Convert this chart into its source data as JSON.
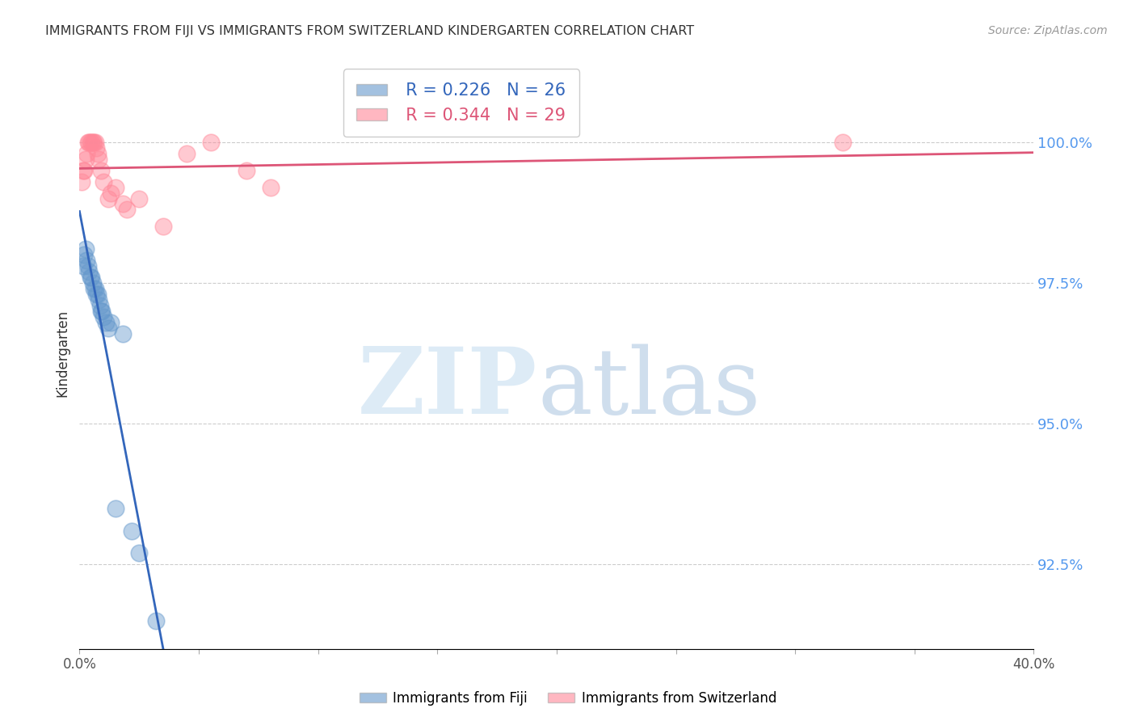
{
  "title": "IMMIGRANTS FROM FIJI VS IMMIGRANTS FROM SWITZERLAND KINDERGARTEN CORRELATION CHART",
  "source": "Source: ZipAtlas.com",
  "ylabel_left": "Kindergarten",
  "legend_fiji": "Immigrants from Fiji",
  "legend_switzerland": "Immigrants from Switzerland",
  "y_ticks_right": [
    92.5,
    95.0,
    97.5,
    100.0
  ],
  "xlim": [
    0.0,
    40.0
  ],
  "ylim": [
    91.0,
    101.5
  ],
  "fiji_R": 0.226,
  "fiji_N": 26,
  "swiss_R": 0.344,
  "swiss_N": 29,
  "fiji_color": "#6699CC",
  "swiss_color": "#FF8899",
  "fiji_line_color": "#3366BB",
  "swiss_line_color": "#DD5577",
  "background_color": "#FFFFFF",
  "fiji_x": [
    0.15,
    0.2,
    0.25,
    0.3,
    0.35,
    0.4,
    0.45,
    0.5,
    0.55,
    0.6,
    0.65,
    0.7,
    0.75,
    0.8,
    0.85,
    0.9,
    0.95,
    1.0,
    1.1,
    1.2,
    1.5,
    2.2,
    2.5,
    3.2,
    1.8,
    1.3
  ],
  "fiji_y": [
    97.8,
    98.0,
    98.1,
    97.9,
    97.8,
    97.7,
    97.6,
    97.6,
    97.5,
    97.4,
    97.4,
    97.3,
    97.3,
    97.2,
    97.1,
    97.0,
    97.0,
    96.9,
    96.8,
    96.7,
    93.5,
    93.1,
    92.7,
    91.5,
    96.6,
    96.8
  ],
  "swiss_x": [
    0.1,
    0.15,
    0.2,
    0.25,
    0.3,
    0.35,
    0.4,
    0.45,
    0.5,
    0.55,
    0.6,
    0.65,
    0.7,
    0.75,
    0.8,
    0.9,
    1.0,
    1.2,
    1.5,
    2.0,
    2.5,
    1.3,
    1.8,
    3.5,
    4.5,
    5.5,
    7.0,
    8.0,
    32.0
  ],
  "swiss_y": [
    99.3,
    99.5,
    99.5,
    99.7,
    99.8,
    100.0,
    100.0,
    100.0,
    100.0,
    100.0,
    100.0,
    100.0,
    99.9,
    99.8,
    99.7,
    99.5,
    99.3,
    99.0,
    99.2,
    98.8,
    99.0,
    99.1,
    98.9,
    98.5,
    99.8,
    100.0,
    99.5,
    99.2,
    100.0
  ]
}
